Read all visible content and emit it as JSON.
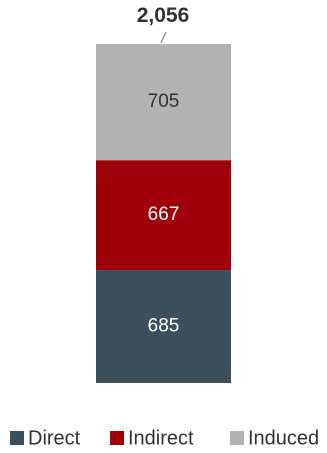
{
  "chart_data": {
    "type": "bar",
    "stacked": true,
    "categories": [
      ""
    ],
    "series": [
      {
        "name": "Direct",
        "values": [
          685
        ],
        "color": "#3b4f5c",
        "label_color": "#ffffff"
      },
      {
        "name": "Indirect",
        "values": [
          667
        ],
        "color": "#a0000a",
        "label_color": "#ffffff"
      },
      {
        "name": "Induced",
        "values": [
          705
        ],
        "color": "#b3b3b3",
        "label_color": "#333333"
      }
    ],
    "total": "2,056",
    "data_labels": [
      "685",
      "667",
      "705"
    ],
    "title": "",
    "xlabel": "",
    "ylabel": "",
    "legend": {
      "position": "bottom",
      "entries": [
        "Direct",
        "Indirect",
        "Induced"
      ]
    },
    "grid": false
  }
}
